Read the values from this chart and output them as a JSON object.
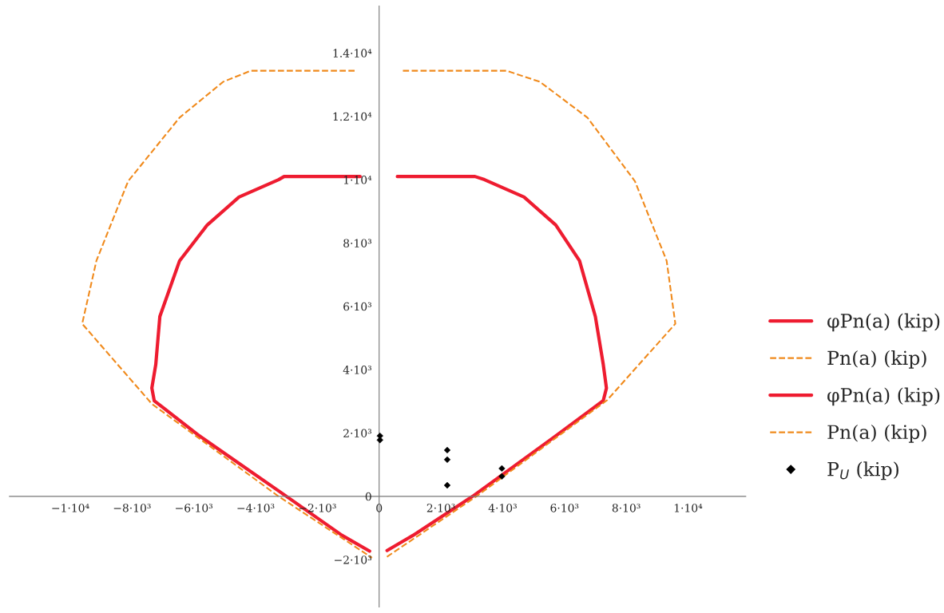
{
  "chart_data": {
    "type": "line",
    "xlim": [
      -11970,
      11870
    ],
    "ylim": [
      -3490,
      15480
    ],
    "xticks": [
      {
        "value": -10000,
        "label": "−1·10⁴"
      },
      {
        "value": -8000,
        "label": "−8·10³"
      },
      {
        "value": -6000,
        "label": "−6·10³"
      },
      {
        "value": -4000,
        "label": "−4·10³"
      },
      {
        "value": -2000,
        "label": "−2·10³"
      },
      0,
      {
        "value": 2000,
        "label": "2·10³"
      },
      {
        "value": 4000,
        "label": "4·10³"
      },
      {
        "value": 6000,
        "label": "6·10³"
      },
      {
        "value": 8000,
        "label": "8·10³"
      },
      {
        "value": 10000,
        "label": "1·10⁴"
      }
    ],
    "yticks": [
      {
        "value": -2000,
        "label": "−2·10³"
      },
      0,
      {
        "value": 2000,
        "label": "2·10³"
      },
      {
        "value": 4000,
        "label": "4·10³"
      },
      {
        "value": 6000,
        "label": "6·10³"
      },
      {
        "value": 8000,
        "label": "8·10³"
      },
      {
        "value": 10000,
        "label": "1·10⁴"
      },
      {
        "value": 12000,
        "label": "1.2·10⁴"
      },
      {
        "value": 14000,
        "label": "1.4·10⁴"
      }
    ],
    "grid": false,
    "legend": "right",
    "series": [
      {
        "name": "φPn(a) (kip)",
        "color": "#ee1c30",
        "line_style": "solid",
        "x": [
          -615,
          -3077,
          -3256,
          -4538,
          -5564,
          -6460,
          -7100,
          -7231,
          -7359,
          -7282,
          -5820,
          -3000,
          -1205,
          -308
        ],
        "values": [
          10100,
          10100,
          10000,
          9450,
          8570,
          7440,
          5680,
          4170,
          3420,
          3020,
          1910,
          0,
          -1230,
          -1730
        ]
      },
      {
        "name": "Pn(a) (kip)",
        "color": "#f08a1c",
        "line_style": "dashed",
        "x": [
          -795,
          -4154,
          -5051,
          -6462,
          -8128,
          -9154,
          -9615,
          -7359,
          -3256,
          -231
        ],
        "values": [
          13440,
          13440,
          13090,
          11960,
          9950,
          7440,
          5450,
          2920,
          0,
          -1940
        ]
      },
      {
        "name": "φPn(a) (kip)",
        "color": "#ee1c30",
        "line_style": "solid",
        "x": [
          590,
          3103,
          3410,
          4692,
          5718,
          6487,
          7000,
          7256,
          7359,
          7256,
          5718,
          3026,
          1100,
          256
        ],
        "values": [
          10100,
          10100,
          10000,
          9450,
          8570,
          7440,
          5680,
          4170,
          3420,
          3020,
          1910,
          0,
          -1230,
          -1710
        ]
      },
      {
        "name": "Pn(a) (kip)",
        "color": "#f08a1c",
        "line_style": "dashed",
        "x": [
          769,
          4128,
          5205,
          6744,
          8282,
          9308,
          9590,
          7385,
          3150,
          205
        ],
        "values": [
          13440,
          13440,
          13090,
          11960,
          9950,
          7440,
          5450,
          3040,
          0,
          -1940
        ]
      },
      {
        "name": "P$_{U}$ (kip)",
        "type": "scatter",
        "marker": "diamond",
        "color": "#000000",
        "x": [
          26,
          26,
          2205,
          2205,
          2205,
          3974,
          3974
        ],
        "values": [
          1910,
          1780,
          1460,
          1160,
          350,
          880,
          630
        ]
      }
    ]
  }
}
